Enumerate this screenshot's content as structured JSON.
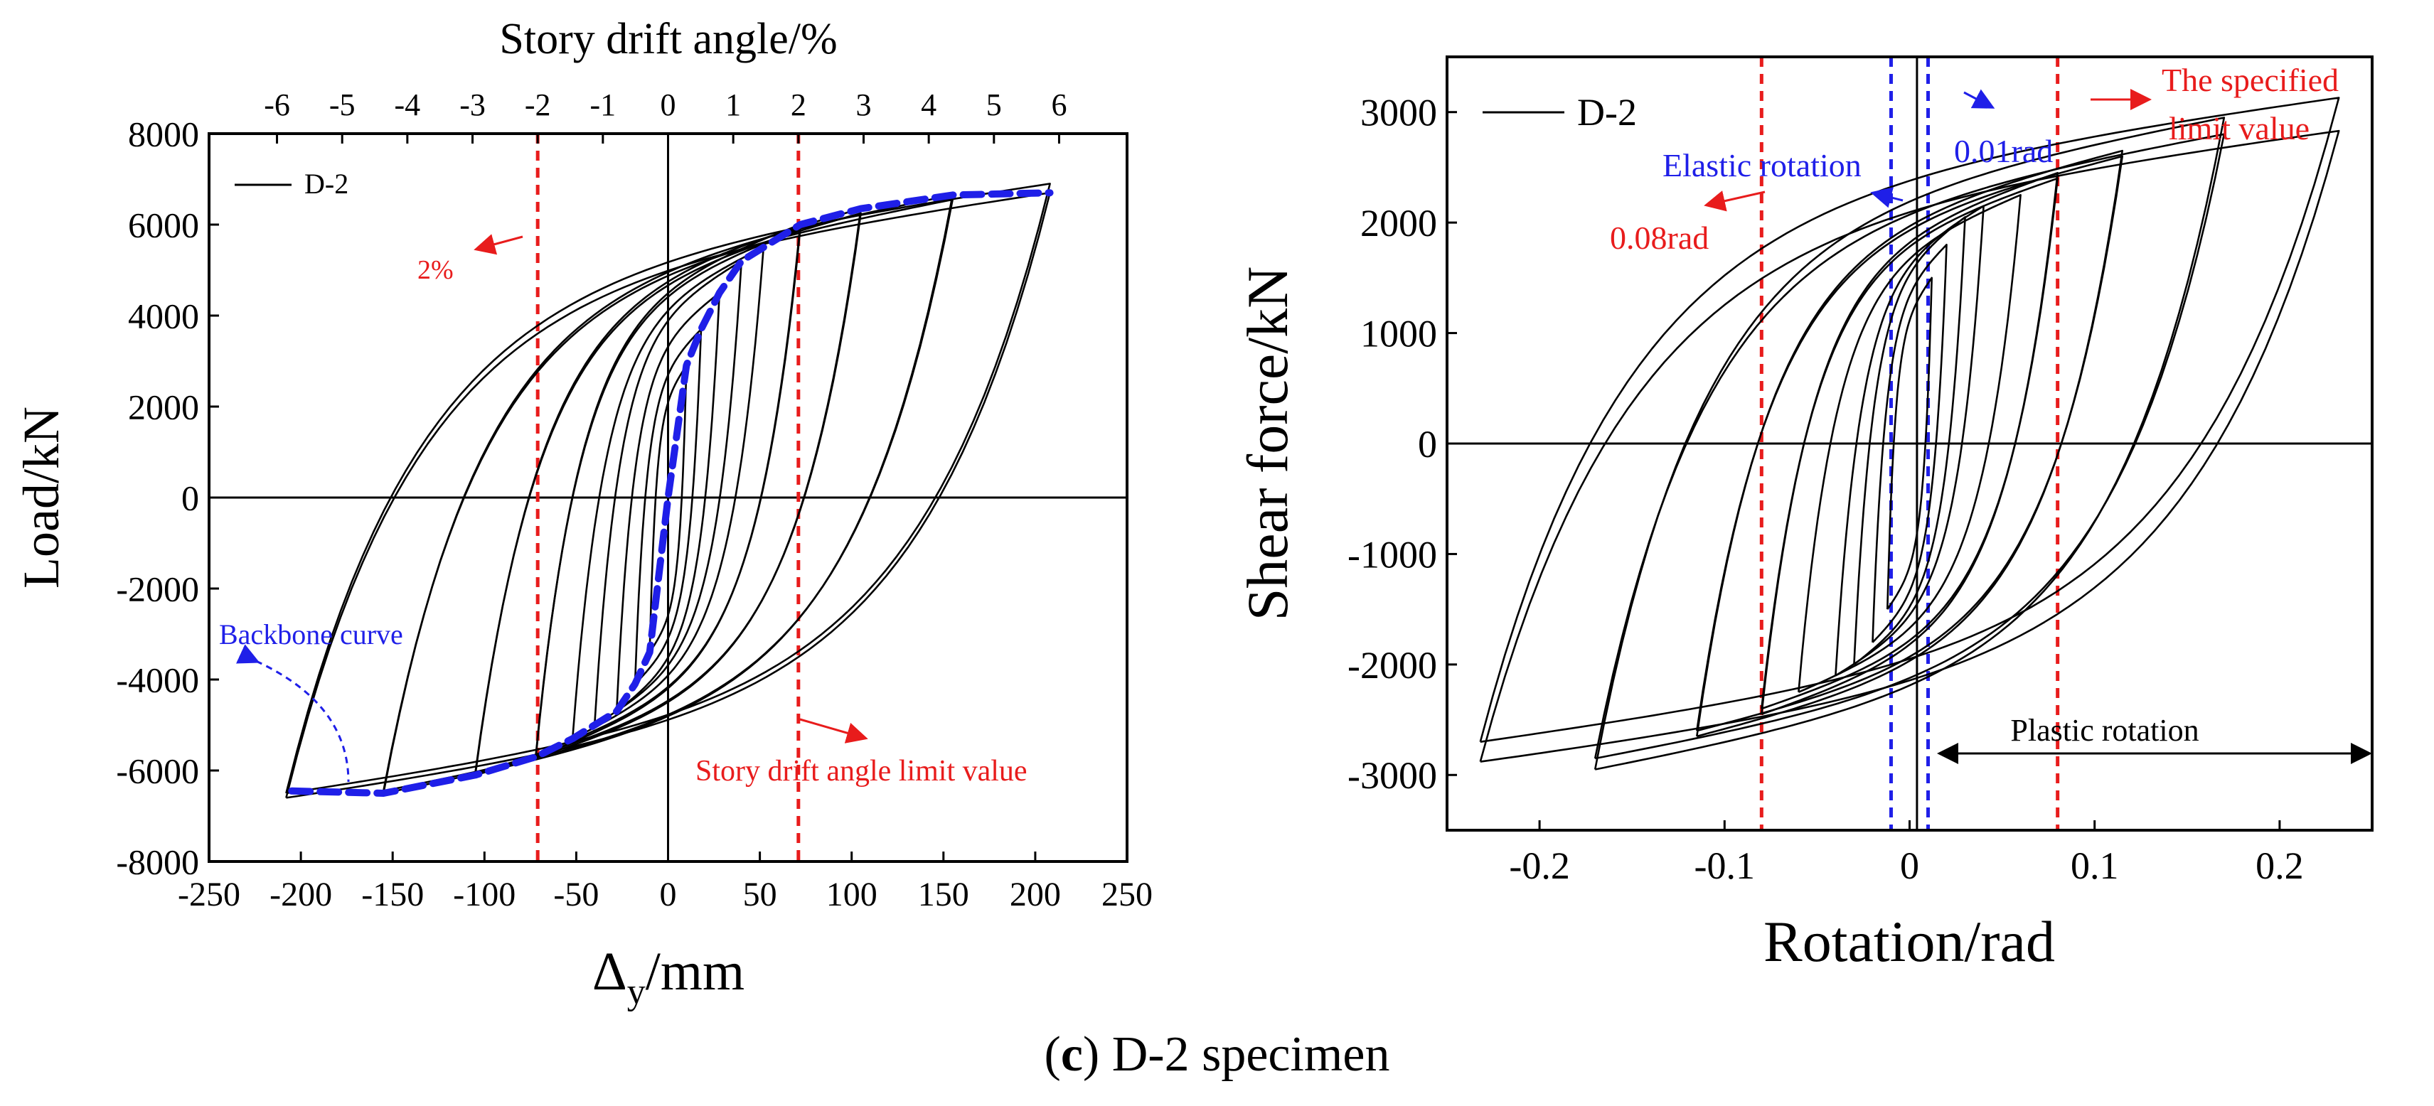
{
  "caption": {
    "open": "(",
    "bold": "c",
    "close": ") D-2 specimen"
  },
  "chart_data": [
    {
      "type": "line",
      "title": "",
      "xlabel": "Δ",
      "xlabel_sub": "y",
      "xlabel_unit": "/mm",
      "ylabel": "Load/kN",
      "x2label": "Story drift angle/%",
      "xlim": [
        -250,
        250
      ],
      "ylim": [
        -8000,
        8000
      ],
      "xticks": [
        -250,
        -200,
        -150,
        -100,
        -50,
        0,
        50,
        100,
        150,
        200,
        250
      ],
      "yticks": [
        -8000,
        -6000,
        -4000,
        -2000,
        0,
        2000,
        4000,
        6000,
        8000
      ],
      "x2ticks": [
        -6,
        -5,
        -4,
        -3,
        -2,
        -1,
        0,
        1,
        2,
        3,
        4,
        5,
        6
      ],
      "x2_mm_per_unit": 35.5,
      "legend": {
        "label": "D-2",
        "position": "top-left"
      },
      "series": [
        {
          "name": "D-2",
          "color": "#000000",
          "loops": [
            {
              "amp": 10,
              "pmax": 2900,
              "pmin": -3400
            },
            {
              "amp": 18,
              "pmax": 3700,
              "pmin": -4100
            },
            {
              "amp": 28,
              "pmax": 4500,
              "pmin": -4700
            },
            {
              "amp": 40,
              "pmax": 5200,
              "pmin": -5000
            },
            {
              "amp": 52,
              "pmax": 5500,
              "pmin": -5300
            },
            {
              "amp": 72,
              "pmax": 6000,
              "pmin": -5700
            },
            {
              "amp": 72,
              "pmax": 5900,
              "pmin": -5650
            },
            {
              "amp": 105,
              "pmax": 6350,
              "pmin": -6100
            },
            {
              "amp": 105,
              "pmax": 6250,
              "pmin": -6050
            },
            {
              "amp": 155,
              "pmax": 6650,
              "pmin": -6500
            },
            {
              "amp": 155,
              "pmax": 6550,
              "pmin": -6450
            },
            {
              "amp": 208,
              "pmax": 6900,
              "pmin": -6500
            },
            {
              "amp": 208,
              "pmax": 6700,
              "pmin": -6600
            }
          ]
        },
        {
          "name": "Backbone curve",
          "color": "#1f1fe8",
          "x": [
            -205,
            -155,
            -105,
            -72,
            -52,
            -40,
            -28,
            -18,
            -10,
            0,
            10,
            18,
            28,
            40,
            52,
            72,
            105,
            155,
            208
          ],
          "y": [
            -6450,
            -6500,
            -6100,
            -5700,
            -5300,
            -5000,
            -4700,
            -4100,
            -3400,
            0,
            2900,
            3700,
            4500,
            5200,
            5500,
            6000,
            6350,
            6650,
            6700
          ]
        }
      ],
      "reference_lines": [
        {
          "x": -71,
          "color": "#e81c1c"
        },
        {
          "x": 71,
          "color": "#e81c1c"
        }
      ],
      "annotations": [
        {
          "text": "2%",
          "color": "#e81c1c"
        },
        {
          "text": "Story drift angle limit value",
          "color": "#e81c1c"
        },
        {
          "text": "Backbone curve",
          "color": "#1f1fe8"
        }
      ]
    },
    {
      "type": "line",
      "title": "",
      "xlabel": "Rotation/rad",
      "ylabel": "Shear force/kN",
      "xlim": [
        -0.25,
        0.25
      ],
      "ylim": [
        -3500,
        3500
      ],
      "xticks": [
        -0.2,
        -0.1,
        0,
        0.1,
        0.2
      ],
      "yticks": [
        -3000,
        -2000,
        -1000,
        0,
        1000,
        2000,
        3000
      ],
      "legend": {
        "label": "D-2",
        "position": "top-left"
      },
      "series": [
        {
          "name": "D-2",
          "color": "#000000",
          "loops": [
            {
              "amp": 0.012,
              "pmax": 1500,
              "pmin": -1500
            },
            {
              "amp": 0.02,
              "pmax": 1800,
              "pmin": -1800
            },
            {
              "amp": 0.03,
              "pmax": 2050,
              "pmin": -2000
            },
            {
              "amp": 0.04,
              "pmax": 2150,
              "pmin": -2100
            },
            {
              "amp": 0.06,
              "pmax": 2250,
              "pmin": -2250
            },
            {
              "amp": 0.08,
              "pmax": 2450,
              "pmin": -2450
            },
            {
              "amp": 0.08,
              "pmax": 2400,
              "pmin": -2400
            },
            {
              "amp": 0.115,
              "pmax": 2650,
              "pmin": -2650
            },
            {
              "amp": 0.115,
              "pmax": 2600,
              "pmin": -2600
            },
            {
              "amp": 0.17,
              "pmax": 2950,
              "pmin": -2950
            },
            {
              "amp": 0.17,
              "pmax": 2800,
              "pmin": -2850
            },
            {
              "amp": 0.232,
              "pmax": 3130,
              "pmin": -2700
            },
            {
              "amp": 0.232,
              "pmax": 2830,
              "pmin": -2880
            }
          ]
        }
      ],
      "reference_lines": [
        {
          "x": -0.08,
          "color": "#e81c1c"
        },
        {
          "x": 0.08,
          "color": "#e81c1c"
        },
        {
          "x": -0.01,
          "color": "#1f1fe8"
        },
        {
          "x": 0.01,
          "color": "#1f1fe8"
        }
      ],
      "vertical_marker": {
        "x": 0.004
      },
      "annotations": [
        {
          "text": "The specified",
          "color": "#e81c1c"
        },
        {
          "text": "limit value",
          "color": "#e81c1c"
        },
        {
          "text": "Elastic rotation",
          "color": "#1f1fe8"
        },
        {
          "text": "0.01rad",
          "color": "#1f1fe8"
        },
        {
          "text": "0.08rad",
          "color": "#e81c1c"
        },
        {
          "text": "Plastic rotation",
          "color": "#000000"
        }
      ]
    }
  ]
}
